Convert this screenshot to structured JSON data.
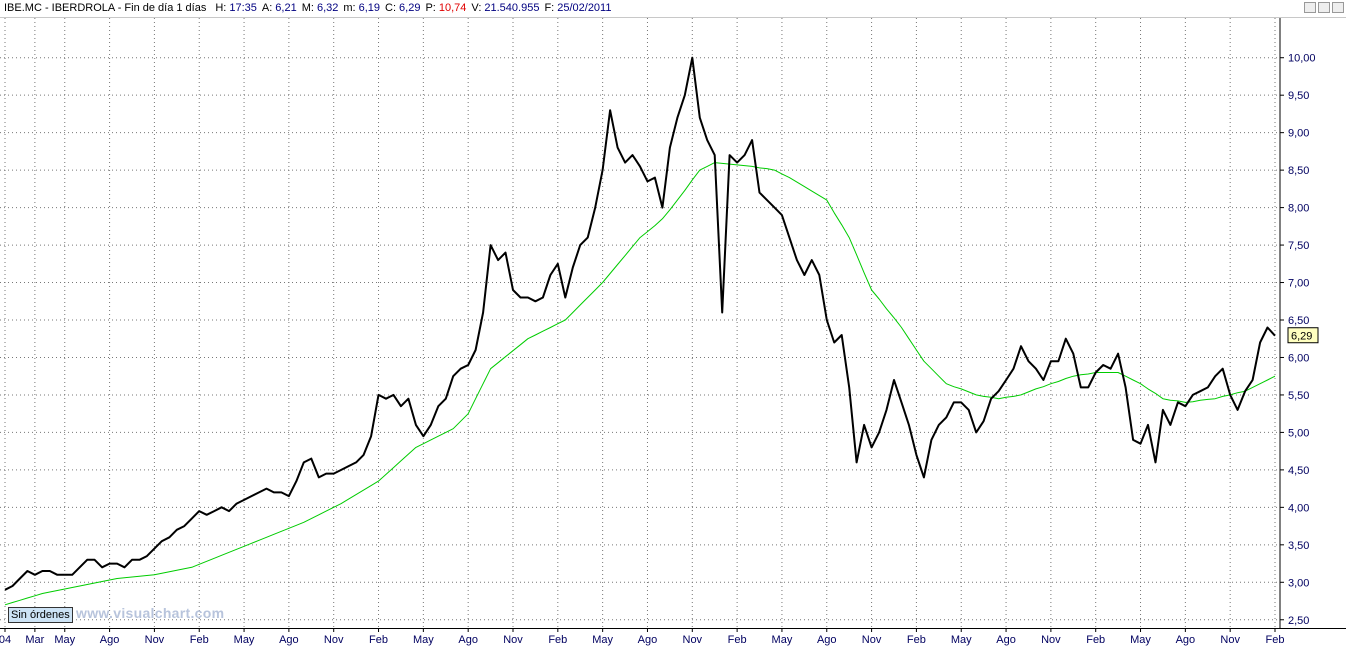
{
  "header": {
    "title": "IBE.MC - IBERDROLA - Fin de día 1 días",
    "fields": [
      {
        "key": "H:",
        "text": "17:35",
        "color": "#000080"
      },
      {
        "key": "A:",
        "text": "6,21",
        "color": "#000080"
      },
      {
        "key": "M:",
        "text": "6,32",
        "color": "#000080"
      },
      {
        "key": "m:",
        "text": "6,19",
        "color": "#000080"
      },
      {
        "key": "C:",
        "text": "6,29",
        "color": "#000080"
      },
      {
        "key": "P:",
        "text": "10,74",
        "color": "#e00000"
      },
      {
        "key": "V:",
        "text": "21.540.955",
        "color": "#000080"
      },
      {
        "key": "F:",
        "text": "25/02/2011",
        "color": "#000080"
      }
    ]
  },
  "button": "Sin órdenes",
  "watermark": "www.visualchart.com",
  "chart_data": {
    "type": "line",
    "grid": true,
    "categories": [
      "04",
      null,
      null,
      null,
      "Mar",
      null,
      null,
      null,
      "May",
      null,
      null,
      null,
      null,
      null,
      "Ago",
      null,
      null,
      null,
      null,
      null,
      "Nov",
      null,
      null,
      null,
      null,
      null,
      "Feb",
      null,
      null,
      null,
      null,
      null,
      "May",
      null,
      null,
      null,
      null,
      null,
      "Ago",
      null,
      null,
      null,
      null,
      null,
      "Nov",
      null,
      null,
      null,
      null,
      null,
      "Feb",
      null,
      null,
      null,
      null,
      null,
      "May",
      null,
      null,
      null,
      null,
      null,
      "Ago",
      null,
      null,
      null,
      null,
      null,
      "Nov",
      null,
      null,
      null,
      null,
      null,
      "Feb",
      null,
      null,
      null,
      null,
      null,
      "May",
      null,
      null,
      null,
      null,
      null,
      "Ago",
      null,
      null,
      null,
      null,
      null,
      "Nov",
      null,
      null,
      null,
      null,
      null,
      "Feb",
      null,
      null,
      null,
      null,
      null,
      "May",
      null,
      null,
      null,
      null,
      null,
      "Ago",
      null,
      null,
      null,
      null,
      null,
      "Nov",
      null,
      null,
      null,
      null,
      null,
      "Feb",
      null,
      null,
      null,
      null,
      null,
      "May",
      null,
      null,
      null,
      null,
      null,
      "Ago",
      null,
      null,
      null,
      null,
      null,
      "Nov",
      null,
      null,
      null,
      null,
      null,
      "Feb",
      null,
      null,
      null,
      null,
      null,
      "May",
      null,
      null,
      null,
      null,
      null,
      "Ago",
      null,
      null,
      null,
      null,
      null,
      "Nov",
      null,
      null,
      null,
      null,
      null,
      "Feb"
    ],
    "series": [
      {
        "color": "#000000",
        "values": [
          2.9,
          2.95,
          3.05,
          3.15,
          3.1,
          3.15,
          3.15,
          3.1,
          3.1,
          3.1,
          3.2,
          3.3,
          3.3,
          3.2,
          3.25,
          3.25,
          3.2,
          3.3,
          3.3,
          3.35,
          3.45,
          3.55,
          3.6,
          3.7,
          3.75,
          3.85,
          3.95,
          3.9,
          3.95,
          4.0,
          3.95,
          4.05,
          4.1,
          4.15,
          4.2,
          4.25,
          4.2,
          4.2,
          4.15,
          4.35,
          4.6,
          4.65,
          4.4,
          4.45,
          4.45,
          4.5,
          4.55,
          4.6,
          4.7,
          4.95,
          5.5,
          5.45,
          5.5,
          5.35,
          5.45,
          5.1,
          4.95,
          5.1,
          5.35,
          5.45,
          5.75,
          5.85,
          5.9,
          6.1,
          6.6,
          7.5,
          7.3,
          7.4,
          6.9,
          6.8,
          6.8,
          6.75,
          6.8,
          7.1,
          7.25,
          6.8,
          7.2,
          7.5,
          7.6,
          8.0,
          8.5,
          9.3,
          8.8,
          8.6,
          8.7,
          8.55,
          8.35,
          8.4,
          8.0,
          8.8,
          9.2,
          9.5,
          10.0,
          9.2,
          8.9,
          8.7,
          6.6,
          8.7,
          8.6,
          8.7,
          8.9,
          8.2,
          8.1,
          8.0,
          7.9,
          7.6,
          7.3,
          7.1,
          7.3,
          7.1,
          6.5,
          6.2,
          6.3,
          5.6,
          4.6,
          5.1,
          4.8,
          5.0,
          5.3,
          5.7,
          5.4,
          5.1,
          4.7,
          4.4,
          4.9,
          5.1,
          5.2,
          5.4,
          5.4,
          5.3,
          5.0,
          5.15,
          5.45,
          5.55,
          5.7,
          5.85,
          6.15,
          5.95,
          5.85,
          5.7,
          5.95,
          5.95,
          6.25,
          6.05,
          5.6,
          5.6,
          5.8,
          5.9,
          5.85,
          6.05,
          5.6,
          4.9,
          4.85,
          5.1,
          4.6,
          5.3,
          5.1,
          5.4,
          5.35,
          5.5,
          5.55,
          5.6,
          5.75,
          5.85,
          5.5,
          5.3,
          5.55,
          5.7,
          6.2,
          6.4,
          6.29
        ],
        "value_labels": [
          null,
          null,
          null,
          null,
          null,
          null,
          null,
          null,
          null,
          null,
          null,
          null,
          null,
          null,
          null,
          null,
          null,
          null,
          null,
          null,
          null,
          null,
          null,
          null,
          null,
          null,
          null,
          null,
          null,
          null,
          null,
          null,
          null,
          null,
          null,
          null,
          null,
          null,
          null,
          null,
          null,
          null,
          null,
          null,
          null,
          null,
          null,
          null,
          null,
          null,
          null,
          null,
          null,
          null,
          null,
          null,
          null,
          null,
          null,
          null,
          null,
          null,
          null,
          null,
          null,
          null,
          null,
          null,
          null,
          null,
          null,
          null,
          null,
          null,
          null,
          null,
          null,
          null,
          null,
          null,
          null,
          null,
          null,
          null,
          null,
          null,
          null,
          null,
          null,
          null,
          null,
          null,
          null,
          null,
          null,
          null,
          null,
          null,
          null,
          null,
          null,
          null,
          null,
          null,
          null,
          null,
          null,
          null,
          null,
          null,
          null,
          null,
          null,
          null,
          null,
          null,
          null,
          null,
          null,
          null,
          null,
          null,
          null,
          null,
          null,
          null,
          null,
          null,
          null,
          null,
          null,
          null,
          null,
          null,
          null,
          null,
          null,
          null,
          null,
          null,
          null,
          null,
          null,
          null,
          null,
          null,
          null,
          null,
          null,
          null,
          null,
          null,
          null,
          null,
          null,
          null,
          null,
          null,
          null,
          null,
          null,
          null,
          null,
          null,
          null,
          null,
          null,
          null,
          null,
          null,
          "6,29"
        ]
      },
      {
        "color": "#00cc00",
        "values": [
          2.7,
          2.73,
          2.76,
          2.79,
          2.82,
          2.85,
          2.87,
          2.89,
          2.91,
          2.93,
          2.95,
          2.97,
          2.99,
          3.01,
          3.03,
          3.05,
          3.06,
          3.07,
          3.08,
          3.09,
          3.1,
          3.12,
          3.14,
          3.16,
          3.18,
          3.2,
          3.24,
          3.28,
          3.32,
          3.36,
          3.4,
          3.44,
          3.48,
          3.52,
          3.56,
          3.6,
          3.64,
          3.68,
          3.72,
          3.76,
          3.8,
          3.85,
          3.9,
          3.95,
          4.0,
          4.05,
          4.11,
          4.17,
          4.23,
          4.29,
          4.35,
          4.44,
          4.53,
          4.62,
          4.71,
          4.8,
          4.85,
          4.9,
          4.95,
          5.0,
          5.05,
          5.15,
          5.25,
          5.45,
          5.65,
          5.85,
          5.93,
          6.01,
          6.09,
          6.17,
          6.25,
          6.3,
          6.35,
          6.4,
          6.45,
          6.5,
          6.6,
          6.7,
          6.8,
          6.9,
          7.0,
          7.12,
          7.24,
          7.36,
          7.48,
          7.6,
          7.68,
          7.76,
          7.85,
          7.97,
          8.1,
          8.23,
          8.37,
          8.5,
          8.55,
          8.6,
          8.59,
          8.58,
          8.57,
          8.56,
          8.55,
          8.53,
          8.52,
          8.5,
          8.45,
          8.4,
          8.34,
          8.28,
          8.22,
          8.16,
          8.1,
          7.93,
          7.77,
          7.6,
          7.37,
          7.13,
          6.9,
          6.78,
          6.65,
          6.53,
          6.4,
          6.25,
          6.1,
          5.95,
          5.85,
          5.75,
          5.65,
          5.61,
          5.58,
          5.54,
          5.5,
          5.48,
          5.47,
          5.45,
          5.47,
          5.48,
          5.5,
          5.54,
          5.58,
          5.61,
          5.65,
          5.68,
          5.72,
          5.75,
          5.77,
          5.78,
          5.8,
          5.8,
          5.8,
          5.8,
          5.75,
          5.7,
          5.65,
          5.58,
          5.52,
          5.45,
          5.43,
          5.42,
          5.4,
          5.41,
          5.43,
          5.44,
          5.45,
          5.48,
          5.5,
          5.53,
          5.55,
          5.6,
          5.65,
          5.7,
          5.75
        ]
      }
    ],
    "ylim": [
      2.39,
      10.53
    ],
    "yticks": [
      {
        "value": 2.5,
        "label": "2,50"
      },
      {
        "value": 3,
        "label": "3,00"
      },
      {
        "value": 3.5,
        "label": "3,50"
      },
      {
        "value": 4,
        "label": "4,00"
      },
      {
        "value": 4.5,
        "label": "4,50"
      },
      {
        "value": 5,
        "label": "5,00"
      },
      {
        "value": 5.5,
        "label": "5,50"
      },
      {
        "value": 6,
        "label": "6,00"
      },
      {
        "value": 6.5,
        "label": "6,50"
      },
      {
        "value": 7,
        "label": "7,00"
      },
      {
        "value": 7.5,
        "label": "7,50"
      },
      {
        "value": 8,
        "label": "8,00"
      },
      {
        "value": 8.5,
        "label": "8,50"
      },
      {
        "value": 9,
        "label": "9,00"
      },
      {
        "value": 9.5,
        "label": "9,50"
      },
      {
        "value": 10,
        "label": "10,00"
      }
    ]
  }
}
